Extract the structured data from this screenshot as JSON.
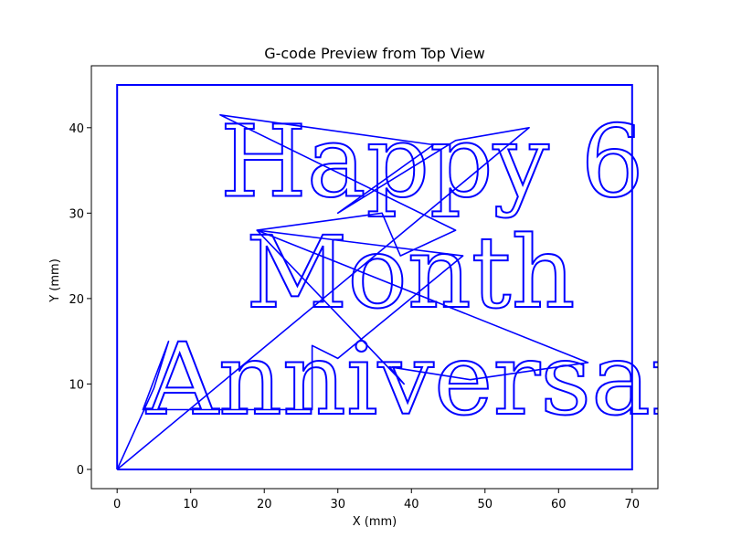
{
  "chart_data": {
    "type": "line",
    "title": "G-code Preview from Top View",
    "xlabel": "X (mm)",
    "ylabel": "Y (mm)",
    "xlim": [
      -3.5,
      73.5
    ],
    "ylim": [
      -2.25,
      47.25
    ],
    "xticks": [
      0,
      10,
      20,
      30,
      40,
      50,
      60,
      70
    ],
    "yticks": [
      0,
      10,
      20,
      30,
      40
    ],
    "grid": false,
    "legend": "none",
    "line_color": "#0000ff",
    "series": [
      {
        "border": [
          [
            0,
            0
          ],
          [
            70,
            0
          ],
          [
            70,
            45
          ],
          [
            0,
            45
          ],
          [
            0,
            0
          ]
        ],
        "travel_moves": [
          [
            [
              0,
              0
            ],
            [
              56,
              40
            ],
            [
              46,
              38.5
            ],
            [
              30,
              30
            ],
            [
              43,
              38
            ],
            [
              14,
              41.5
            ],
            [
              46,
              28
            ],
            [
              38.5,
              25
            ],
            [
              36,
              30
            ],
            [
              19,
              28
            ],
            [
              64,
              12.5
            ],
            [
              48,
              10.5
            ],
            [
              37,
              12
            ],
            [
              39,
              10
            ],
            [
              19,
              28
            ],
            [
              47,
              25
            ],
            [
              30,
              13
            ],
            [
              26.5,
              14.5
            ],
            [
              26.5,
              7
            ],
            [
              3.5,
              7
            ],
            [
              7,
              15
            ],
            [
              5,
              9.5
            ],
            [
              0,
              0
            ]
          ]
        ]
      }
    ],
    "text_paths": [
      {
        "text": "Happy 6",
        "x": 14,
        "baseline": 32,
        "size": 13.5
      },
      {
        "text": "Month",
        "x": 17.5,
        "baseline": 19,
        "size": 13.5
      },
      {
        "text": "Anniversary",
        "x": 4,
        "baseline": 6.5,
        "size": 13.5
      }
    ]
  }
}
